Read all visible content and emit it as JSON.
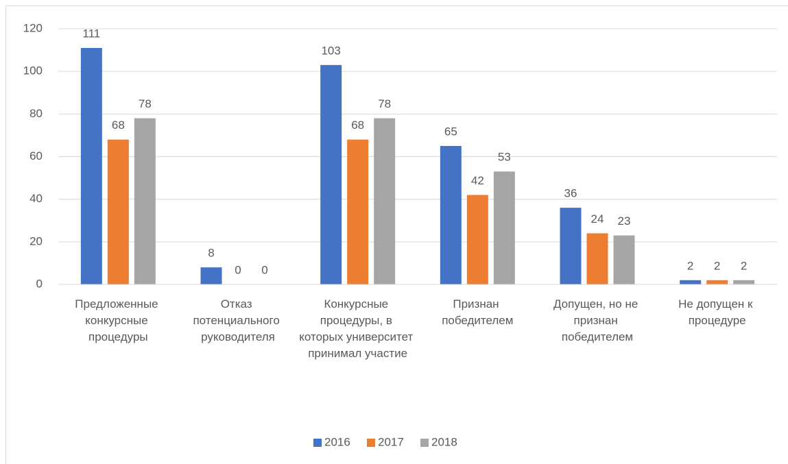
{
  "chart_data": {
    "type": "bar",
    "categories": [
      "Предложенные конкурсные процедуры",
      "Отказ потенциального руководителя",
      "Конкурсные процедуры, в которых университет принимал участие",
      "Признан победителем",
      "Допущен, но не признан победителем",
      "Не допущен к процедуре"
    ],
    "series": [
      {
        "name": "2016",
        "color": "#4472c4",
        "values": [
          111,
          8,
          103,
          65,
          36,
          2
        ]
      },
      {
        "name": "2017",
        "color": "#ed7d31",
        "values": [
          68,
          0,
          68,
          42,
          24,
          2
        ]
      },
      {
        "name": "2018",
        "color": "#a5a5a5",
        "values": [
          78,
          0,
          78,
          53,
          23,
          2
        ]
      }
    ],
    "ylim": [
      0,
      120
    ],
    "yticks": [
      0,
      20,
      40,
      60,
      80,
      100,
      120
    ],
    "grid": true,
    "legend": "bottom"
  }
}
